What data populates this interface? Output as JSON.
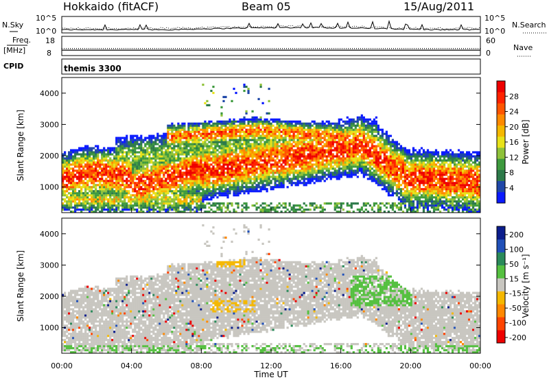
{
  "header": {
    "station": "Hokkaido (fitACF)",
    "beam": "Beam 05",
    "date": "15/Aug/2011"
  },
  "noise_panel": {
    "left_label": "N.Sky",
    "right_label": "N.Search",
    "y_ticks": [
      "10^5",
      "10^0"
    ]
  },
  "freq_panel": {
    "left_label_1": "Freq.",
    "left_label_2": "[MHz]",
    "right_label": "Nave",
    "left_ticks": [
      "18",
      "8"
    ],
    "right_ticks": [
      "60",
      "0"
    ],
    "freq_value": 10.8,
    "nave_value": 22
  },
  "cpid_panel": {
    "label": "CPID",
    "program": "themis 3300"
  },
  "chart_data": [
    {
      "type": "heatmap",
      "title": "",
      "ylabel": "Slant Range [km]",
      "xlabel": "",
      "ylim": [
        180,
        4500
      ],
      "y_ticks": [
        "1000",
        "2000",
        "3000",
        "4000"
      ],
      "colorbar": {
        "label": "Power [dB]",
        "range": [
          0,
          32
        ],
        "ticks": [
          "4",
          "8",
          "12",
          "16",
          "20",
          "24",
          "28"
        ],
        "colors": [
          "#0a1aff",
          "#1f47a8",
          "#2d7a4a",
          "#3e9a3e",
          "#8fc23a",
          "#e8e21a",
          "#f5b800",
          "#ff8a00",
          "#ff5500",
          "#ff2200",
          "#ee0000"
        ]
      }
    },
    {
      "type": "heatmap",
      "title": "",
      "ylabel": "Slant Range [km]",
      "xlabel": "Time UT",
      "ylim": [
        180,
        4500
      ],
      "y_ticks": [
        "1000",
        "2000",
        "3000",
        "4000"
      ],
      "x_ticks": [
        "00:00",
        "04:00",
        "08:00",
        "12:00",
        "16:00",
        "20:00",
        "00:00"
      ],
      "colorbar": {
        "label": "Velocity [m s⁻¹]",
        "range": [
          -250,
          250
        ],
        "ticks": [
          "200",
          "100",
          "50",
          "15",
          "-15",
          "-50",
          "-100",
          "-200"
        ],
        "colors": [
          "#0b1d8c",
          "#2050b8",
          "#2a8a5a",
          "#55c040",
          "#c8c6c0",
          "#f5b800",
          "#ff8800",
          "#ff4400",
          "#ee0000"
        ]
      },
      "ground_scatter_color": "#c8c6c0"
    }
  ]
}
